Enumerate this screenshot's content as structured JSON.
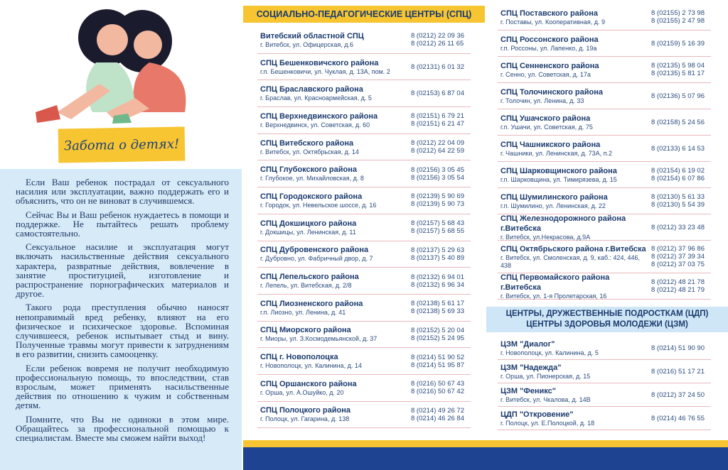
{
  "left": {
    "banner": "Забота о детях!",
    "paragraphs": [
      "Если Ваш ребенок пострадал от сексуального насилия или эксплуатации, важно поддержать его и объяснить, что он не виноват в случившемся.",
      "Сейчас Вы и Ваш ребенок нуждаетесь в помощи и поддержке. Не пытайтесь решать проблему самостоятельно.",
      "Сексуальное насилие и эксплуатация могут включать насильственные действия сексуального характера, развратные действия, вовлечение в занятие проституцией, изготовление и распространение порнографических материалов и другое.",
      "Такого рода преступления обычно наносят непоправимый вред ребенку, влияют на его физическое и психическое здоровье. Вспоминая случившееся, ребенок испытывает стыд и вину. Полученные травмы могут привести к затруднениям в его развитии, снизить самооценку.",
      "Если ребенок вовремя не получит необходимую профессиональную помощь, то впоследствии, став взрослым, может применять насильственные действия по отношению к чужим и собственным детям.",
      "Помните, что Вы не одиноки в этом мире. Обращайтесь за профессиональной помощью к специалистам. Вместе мы сможем найти выход!"
    ]
  },
  "middle": {
    "title": "СОЦИАЛЬНО-ПЕДАГОГИЧЕСКИЕ ЦЕНТРЫ (СПЦ)",
    "entries": [
      {
        "name": "Витебский областной СПЦ",
        "address": "г. Витебск, ул. Офицерская, д.6",
        "phones": [
          "8 (0212) 22 09 36",
          "8 (0212) 26 11 65"
        ]
      },
      {
        "name": "СПЦ Бешенковичского района",
        "address": "г.п. Бешенковичи, ул. Чуклая, д. 13А, пом. 2",
        "phones": [
          "8 (02131) 6 01 32"
        ]
      },
      {
        "name": "СПЦ Браславского района",
        "address": "г. Браслав, ул. Красноармейская, д. 5",
        "phones": [
          "8 (02153) 6 87 04"
        ]
      },
      {
        "name": "СПЦ Верхнедвинского района",
        "address": "г. Верхнедвинск, ул. Советская, д. 60",
        "phones": [
          "8 (02151) 6 79 21",
          "8 (02151) 6 21 47"
        ]
      },
      {
        "name": "СПЦ Витебского района",
        "address": "г. Витебск, ул. Октябрьская, д. 14",
        "phones": [
          "8 (0212) 22 04 09",
          "8 (0212) 64 22 59"
        ]
      },
      {
        "name": "СПЦ Глубокского района",
        "address": "г. Глубокое, ул. Михайловская, д. 8",
        "phones": [
          "8 (02156) 3 05 45",
          "8 (02156) 3 05 54"
        ]
      },
      {
        "name": "СПЦ Городокского района",
        "address": "г. Городок, ул. Невельское шоссе, д. 16",
        "phones": [
          "8 (02139) 5 90 69",
          "8 (02139) 5 90 73"
        ]
      },
      {
        "name": "СПЦ Докшицкого района",
        "address": "г. Докшицы, ул. Ленинская, д. 11",
        "phones": [
          "8 (02157) 5 68 43",
          "8 (02157) 5 68 55"
        ]
      },
      {
        "name": "СПЦ Дубровенского района",
        "address": "г. Дубровно, ул. Фабричный двор, д. 7",
        "phones": [
          "8 (02137) 5 29 63",
          "8 (02137) 5 40 89"
        ]
      },
      {
        "name": "СПЦ Лепельского района",
        "address": "г. Лепель, ул. Витебская, д. 2/8",
        "phones": [
          "8 (02132) 6 94 01",
          "8 (02132) 6 96 34"
        ]
      },
      {
        "name": "СПЦ Лиозненского района",
        "address": "г.п. Лиозно, ул. Ленина, д. 41",
        "phones": [
          "8 (02138) 5 61 17",
          "8 (02138) 5 69 33"
        ]
      },
      {
        "name": "СПЦ Миорского района",
        "address": "г. Миоры, ул. З.Космодемьянской, д. 37",
        "phones": [
          "8 (02152) 5 20 04",
          "8 (02152) 5 24 95"
        ]
      },
      {
        "name": "СПЦ г. Новополоцка",
        "address": "г. Новополоцк, ул. Калинина, д. 14",
        "phones": [
          "8 (0214) 51 90 52",
          "8 (0214) 51 95 87"
        ]
      },
      {
        "name": "СПЦ Оршанского района",
        "address": "г. Орша, ул. А.Ошуйко, д. 20",
        "phones": [
          "8 (0216) 50 67 43",
          "8 (0216) 50 67 42"
        ]
      },
      {
        "name": "СПЦ Полоцкого района",
        "address": "г. Полоцк, ул. Гагарина, д. 138",
        "phones": [
          "8 (0214) 49 26 72",
          "8 (0214) 46 26 84"
        ]
      }
    ]
  },
  "right": {
    "entries": [
      {
        "name": "СПЦ Поставского района",
        "address": "г. Поставы, ул. Кооперативная, д. 9",
        "phones": [
          "8 (02155) 2 73 98",
          "8 (02155) 2 47 98"
        ]
      },
      {
        "name": "СПЦ Россонского района",
        "address": "г.п. Россоны, ул. Лапенко, д. 19а",
        "phones": [
          "8 (02159) 5 16 39"
        ]
      },
      {
        "name": "СПЦ Сенненского района",
        "address": "г. Сенно, ул. Советская, д. 17а",
        "phones": [
          "8 (02135) 5 98 04",
          "8 (02135) 5 81 17"
        ]
      },
      {
        "name": "СПЦ Толочинского района",
        "address": "г. Толочин, ул. Ленина, д. 33",
        "phones": [
          "8 (02136) 5 07 96"
        ]
      },
      {
        "name": "СПЦ Ушачского района",
        "address": "г.п. Ушачи, ул. Советская, д. 75",
        "phones": [
          "8 (02158) 5 24 56"
        ]
      },
      {
        "name": "СПЦ Чашникского района",
        "address": "г. Чашники, ул. Ленинская, д. 73А, п.2",
        "phones": [
          "8 (02133) 6 14 53"
        ]
      },
      {
        "name": "СПЦ Шарковщинского района",
        "address": "г.п. Шарковщина, ул. Тимирязева, д. 15",
        "phones": [
          "8 (02154) 6 19 02",
          "8 (02154) 6 07 86"
        ]
      },
      {
        "name": "СПЦ Шумилинского района",
        "address": "г.п. Шумилино, ул. Ленинская, д. 22",
        "phones": [
          "8 (02130) 5 61 33",
          "8 (02130) 5 54 39"
        ]
      },
      {
        "name": "СПЦ Железнодорожного района г.Витебска",
        "address": "г. Витебск, ул.Некрасова, д.9А",
        "phones": [
          "8 (0212) 33 23 48"
        ]
      },
      {
        "name": "СПЦ Октябрьского района г.Витебска",
        "address": "г. Витебск, ул. Смоленская, д. 9, каб.: 424, 446, 438",
        "phones": [
          "8 (0212) 37 96 86",
          "8 (0212) 37 39 34",
          "8 (0212) 37 03 75"
        ]
      },
      {
        "name": "СПЦ Первомайского района г.Витебска",
        "address": "г. Витебск, ул. 1-я Пролетарская, 16",
        "phones": [
          "8 (0212) 48 21 78",
          "8 (0212) 48 21 79"
        ]
      }
    ],
    "section_title": [
      "ЦЕНТРЫ, ДРУЖЕСТВЕННЫЕ ПОДРОСТКАМ (ЦДП)",
      "ЦЕНТРЫ ЗДОРОВЬЯ МОЛОДЕЖИ (ЦЗМ)"
    ],
    "youth_entries": [
      {
        "name": "ЦЗМ \"Диалог\"",
        "address": "г. Новополоцк, ул. Калинина, д. 5",
        "phones": [
          "8 (0214) 51 90 90"
        ]
      },
      {
        "name": "ЦЗМ \"Надежда\"",
        "address": "г. Орша, ул. Пионерская, д. 15",
        "phones": [
          "8 (0216) 51 17 21"
        ]
      },
      {
        "name": "ЦЗМ \"Феникс\"",
        "address": "г. Витебск, ул. Чкалова, д. 14В",
        "phones": [
          "8 (0212) 37 24 50"
        ]
      },
      {
        "name": "ЦДП \"Откровение\"",
        "address": "г. Полоцк, ул. Е.Полоцкой, д. 18",
        "phones": [
          "8 (0214) 46 76 55"
        ]
      }
    ]
  }
}
